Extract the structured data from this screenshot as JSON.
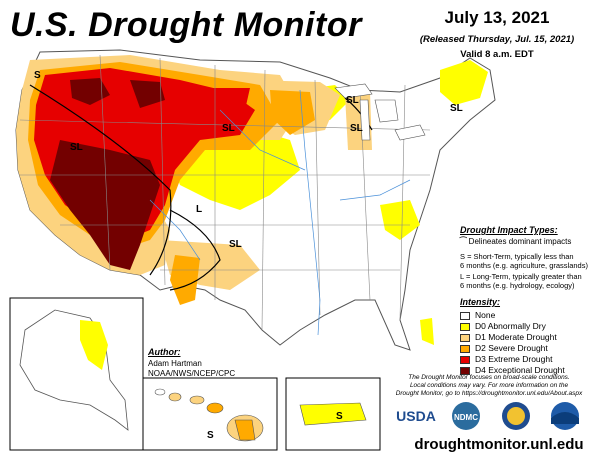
{
  "title": "U.S. Drought Monitor",
  "date": "July 13, 2021",
  "released": "(Released Thursday, Jul. 15, 2021)",
  "valid": "Valid 8 a.m. EDT",
  "impact": {
    "title": "Drought Impact Types:",
    "delineates": "Delineates dominant impacts",
    "short_term_line1": "S = Short-Term, typically less than",
    "short_term_line2": "6 months (e.g. agriculture, grasslands)",
    "long_term_line1": "L = Long-Term, typically greater than",
    "long_term_line2": "6 months (e.g. hydrology, ecology)"
  },
  "intensity": {
    "title": "Intensity:",
    "levels": [
      {
        "label": "None",
        "color": "#ffffff"
      },
      {
        "label": "D0 Abnormally Dry",
        "color": "#ffff00"
      },
      {
        "label": "D1 Moderate Drought",
        "color": "#fcd37f"
      },
      {
        "label": "D2 Severe Drought",
        "color": "#ffaa00"
      },
      {
        "label": "D3 Extreme Drought",
        "color": "#e60000"
      },
      {
        "label": "D4 Exceptional Drought",
        "color": "#730000"
      }
    ]
  },
  "author": {
    "title": "Author:",
    "name": "Adam Hartman",
    "org": "NOAA/NWS/NCEP/CPC"
  },
  "disclaimer": {
    "line1": "The Drought Monitor focuses on broad-scale conditions.",
    "line2": "Local conditions may vary. For more information on the",
    "line3": "Drought Monitor, go to https://droughtmonitor.unl.edu/About.aspx"
  },
  "url": "droughtmonitor.unl.edu",
  "map_labels": {
    "sl": "SL",
    "s": "S",
    "l": "L"
  },
  "logos": {
    "usda": "USDA",
    "ndmc": "NDMC"
  },
  "icons": [
    "usda-logo",
    "ndmc-logo",
    "doc-seal",
    "noaa-logo"
  ]
}
